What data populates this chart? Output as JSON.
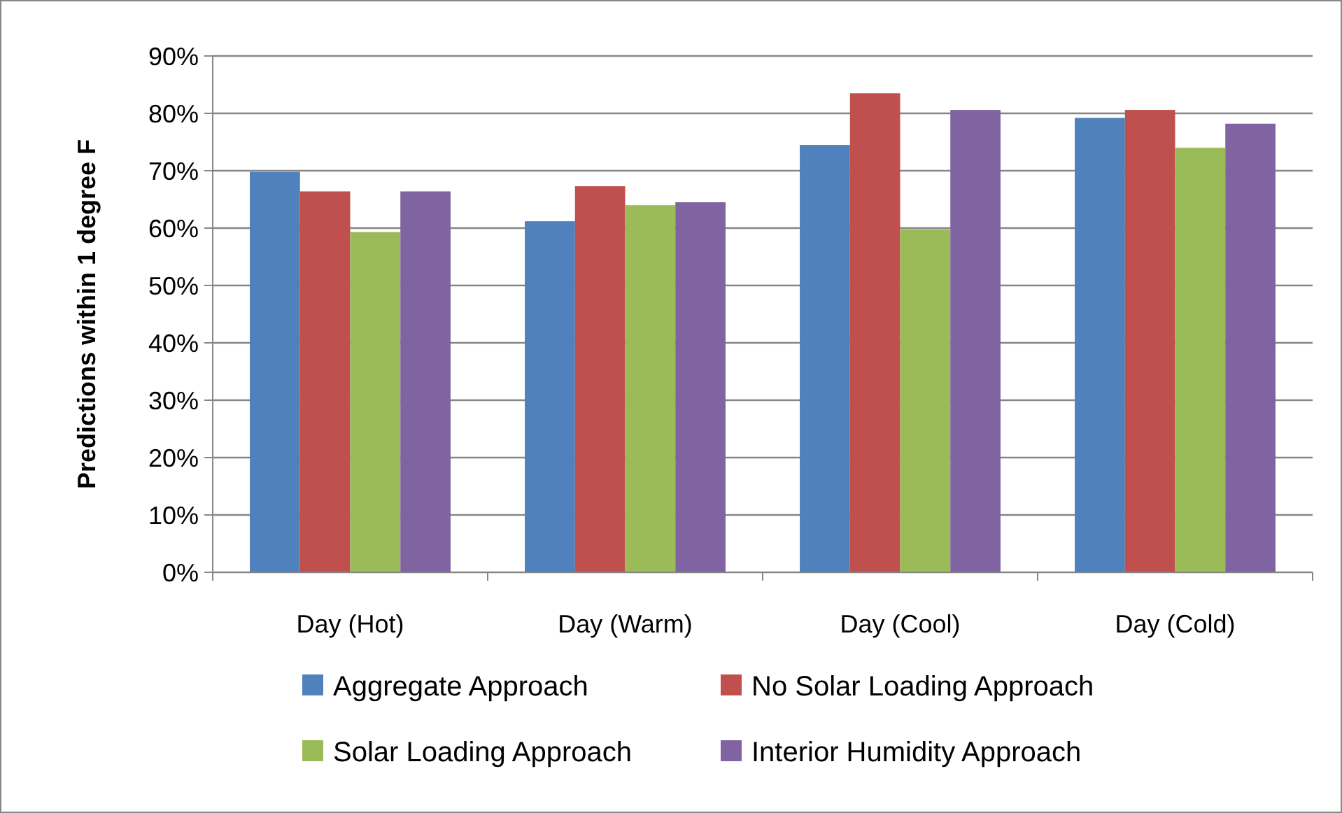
{
  "chart_data": {
    "type": "bar",
    "ylabel": "Predictions within 1 degree F",
    "categories": [
      "Day (Hot)",
      "Day (Warm)",
      "Day (Cool)",
      "Day (Cold)"
    ],
    "series": [
      {
        "name": "Aggregate Approach",
        "color": "#4f81bd",
        "values": [
          69.8,
          61.2,
          74.5,
          79.2
        ]
      },
      {
        "name": "No Solar Loading Approach",
        "color": "#c0504d",
        "values": [
          66.4,
          67.3,
          83.5,
          80.6
        ]
      },
      {
        "name": "Solar Loading Approach",
        "color": "#9bbb59",
        "values": [
          59.3,
          64.0,
          59.8,
          74.0
        ]
      },
      {
        "name": "Interior Humidity Approach",
        "color": "#8064a2",
        "values": [
          66.4,
          64.5,
          80.6,
          78.2
        ]
      }
    ],
    "ylim": [
      0,
      90
    ],
    "yticks": [
      {
        "value": 0,
        "label": "0%"
      },
      {
        "value": 10,
        "label": "10%"
      },
      {
        "value": 20,
        "label": "20%"
      },
      {
        "value": 30,
        "label": "30%"
      },
      {
        "value": 40,
        "label": "40%"
      },
      {
        "value": 50,
        "label": "50%"
      },
      {
        "value": 60,
        "label": "60%"
      },
      {
        "value": 70,
        "label": "70%"
      },
      {
        "value": 80,
        "label": "80%"
      },
      {
        "value": 90,
        "label": "90%"
      }
    ],
    "grid": "y",
    "legend": "bottom"
  }
}
